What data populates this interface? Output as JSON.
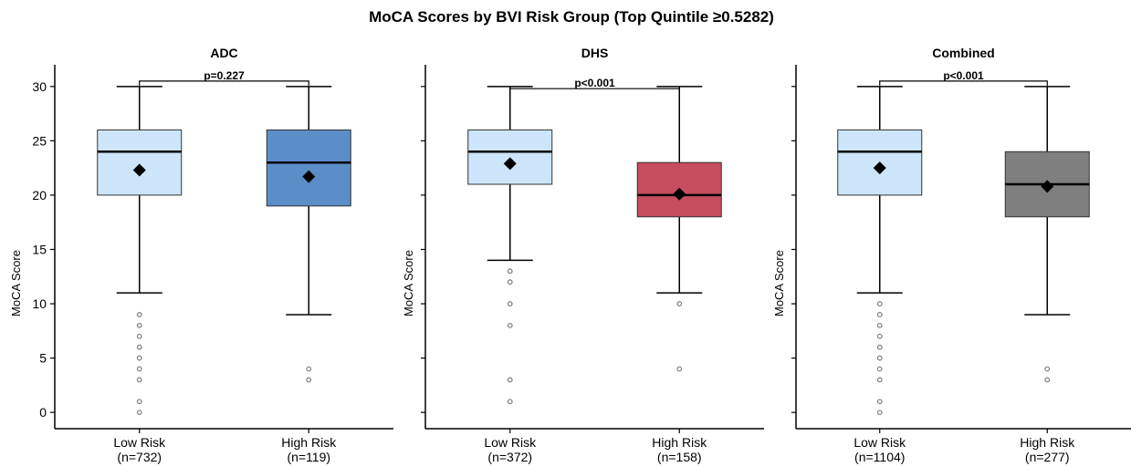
{
  "figure": {
    "title": "MoCA Scores by BVI Risk Group (Top Quintile ≥0.5282)"
  },
  "chart_data": [
    {
      "type": "box",
      "title": "ADC",
      "xlabel": "",
      "ylabel": "MoCA Score",
      "ylim": [
        -1.5,
        32
      ],
      "yticks": [
        0,
        5,
        10,
        15,
        20,
        25,
        30
      ],
      "categories": [
        "Low Risk\n(n=732)",
        "High Risk\n(n=119)"
      ],
      "boxes": [
        {
          "q1": 20,
          "median": 24,
          "q3": 26,
          "whisker_low": 11,
          "whisker_high": 30,
          "mean": 22.3,
          "outliers": [
            9,
            8,
            7,
            6,
            5,
            4,
            3,
            1,
            0
          ],
          "color": "#cce5fb"
        },
        {
          "q1": 19,
          "median": 23,
          "q3": 26,
          "whisker_low": 9,
          "whisker_high": 30,
          "mean": 21.7,
          "outliers": [
            4,
            3
          ],
          "color": "#5b8ec8"
        }
      ],
      "significance": {
        "label": "p=0.227",
        "y": 30.5
      }
    },
    {
      "type": "box",
      "title": "DHS",
      "xlabel": "",
      "ylabel": "MoCA Score",
      "ylim": [
        -1.5,
        32
      ],
      "yticks": [
        0,
        5,
        10,
        15,
        20,
        25,
        30
      ],
      "categories": [
        "Low Risk\n(n=372)",
        "High Risk\n(n=158)"
      ],
      "boxes": [
        {
          "q1": 21,
          "median": 24,
          "q3": 26,
          "whisker_low": 14,
          "whisker_high": 30,
          "mean": 22.9,
          "outliers": [
            13,
            12,
            10,
            8,
            3,
            1
          ],
          "color": "#cce5fb"
        },
        {
          "q1": 18,
          "median": 20,
          "q3": 23,
          "whisker_low": 11,
          "whisker_high": 30,
          "mean": 20.1,
          "outliers": [
            10,
            4
          ],
          "color": "#c54d5e"
        }
      ],
      "significance": {
        "label": "p<0.001",
        "y": 29.8
      }
    },
    {
      "type": "box",
      "title": "Combined",
      "xlabel": "",
      "ylabel": "MoCA Score",
      "ylim": [
        -1.5,
        32
      ],
      "yticks": [
        0,
        5,
        10,
        15,
        20,
        25,
        30
      ],
      "categories": [
        "Low Risk\n(n=1104)",
        "High Risk\n(n=277)"
      ],
      "boxes": [
        {
          "q1": 20,
          "median": 24,
          "q3": 26,
          "whisker_low": 11,
          "whisker_high": 30,
          "mean": 22.5,
          "outliers": [
            10,
            9,
            8,
            7,
            6,
            5,
            4,
            3,
            1,
            0
          ],
          "color": "#cce5fb"
        },
        {
          "q1": 18,
          "median": 21,
          "q3": 24,
          "whisker_low": 9,
          "whisker_high": 30,
          "mean": 20.8,
          "outliers": [
            4,
            3
          ],
          "color": "#7f7f7f"
        }
      ],
      "significance": {
        "label": "p<0.001",
        "y": 30.5
      }
    }
  ]
}
